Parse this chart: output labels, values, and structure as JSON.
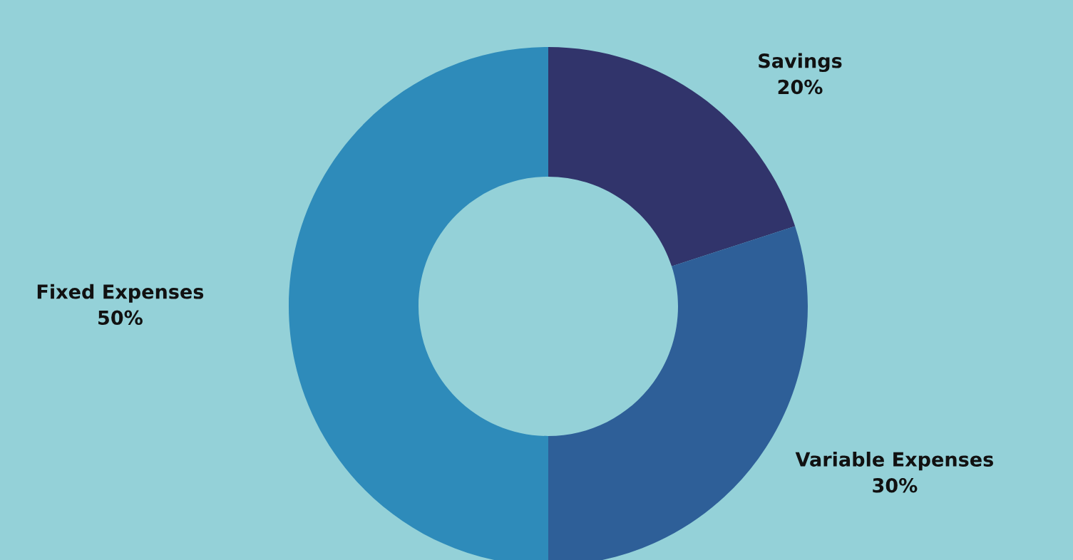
{
  "chart_data": {
    "type": "donut",
    "categories": [
      "Savings",
      "Variable Expenses",
      "Fixed Expenses"
    ],
    "values": [
      20,
      30,
      50
    ],
    "value_labels": [
      "20%",
      "30%",
      "50%"
    ],
    "colors": [
      "#31346b",
      "#2e5f98",
      "#2e8bba"
    ]
  }
}
